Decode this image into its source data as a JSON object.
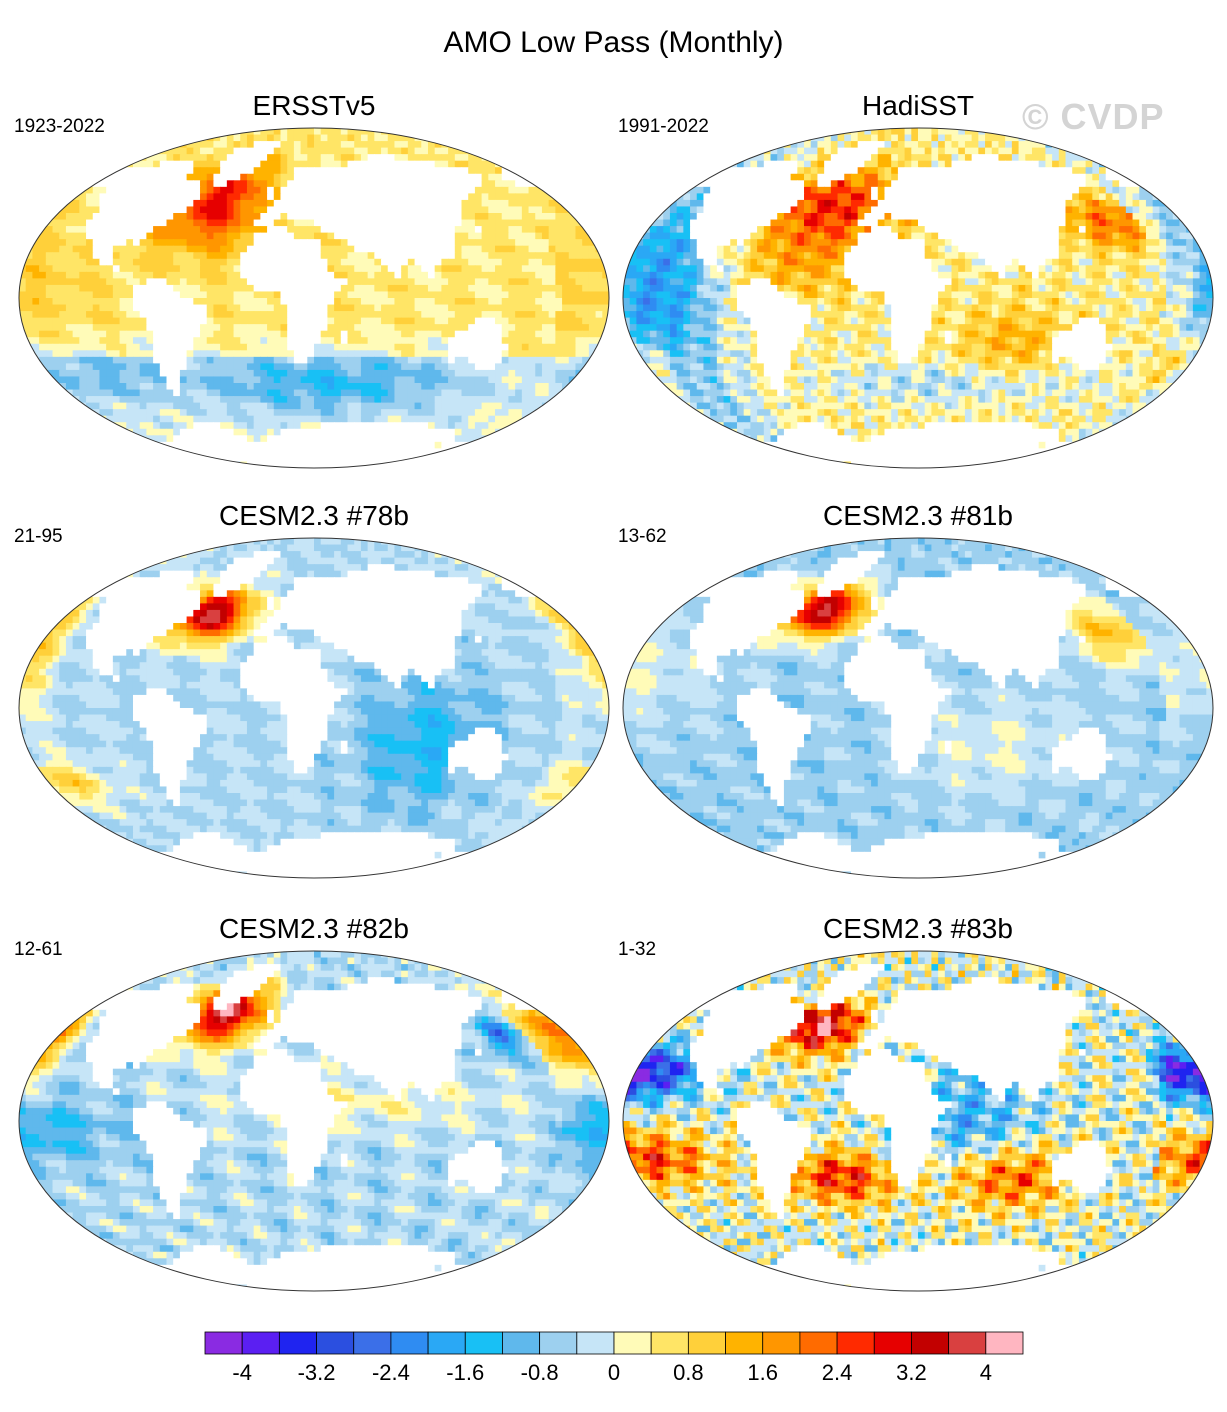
{
  "title": "AMO Low Pass (Monthly)",
  "watermark": "© CVDP",
  "colors": {
    "land": "#ffffff",
    "coast": "#888888",
    "outline": "#333333"
  },
  "panels": [
    {
      "id": "p1",
      "title": "ERSSTv5",
      "years": "1923-2022",
      "pattern": "erss"
    },
    {
      "id": "p2",
      "title": "HadiSST",
      "years": "1991-2022",
      "pattern": "hadi"
    },
    {
      "id": "p3",
      "title": "CESM2.3 #78b",
      "years": "21-95",
      "pattern": "c78"
    },
    {
      "id": "p4",
      "title": "CESM2.3 #81b",
      "years": "13-62",
      "pattern": "c81"
    },
    {
      "id": "p5",
      "title": "CESM2.3 #82b",
      "years": "12-61",
      "pattern": "c82"
    },
    {
      "id": "p6",
      "title": "CESM2.3 #83b",
      "years": "1-32",
      "pattern": "c83"
    }
  ],
  "colorbar": {
    "colors": [
      "#8a2be2",
      "#5b1ff2",
      "#1f24f0",
      "#2b4fe0",
      "#3b6fe8",
      "#2f8cf2",
      "#2aa8f5",
      "#18c0f5",
      "#5fb8ec",
      "#9dd0ef",
      "#c6e5f7",
      "#fffbb8",
      "#ffe566",
      "#ffd03a",
      "#ffb300",
      "#ff9600",
      "#ff6b00",
      "#ff2a00",
      "#e60000",
      "#c20000",
      "#d94040",
      "#ffb6c1"
    ],
    "labels": [
      "-4",
      "-3.2",
      "-2.4",
      "-1.6",
      "-0.8",
      "0",
      "0.8",
      "1.6",
      "2.4",
      "3.2",
      "4"
    ]
  }
}
